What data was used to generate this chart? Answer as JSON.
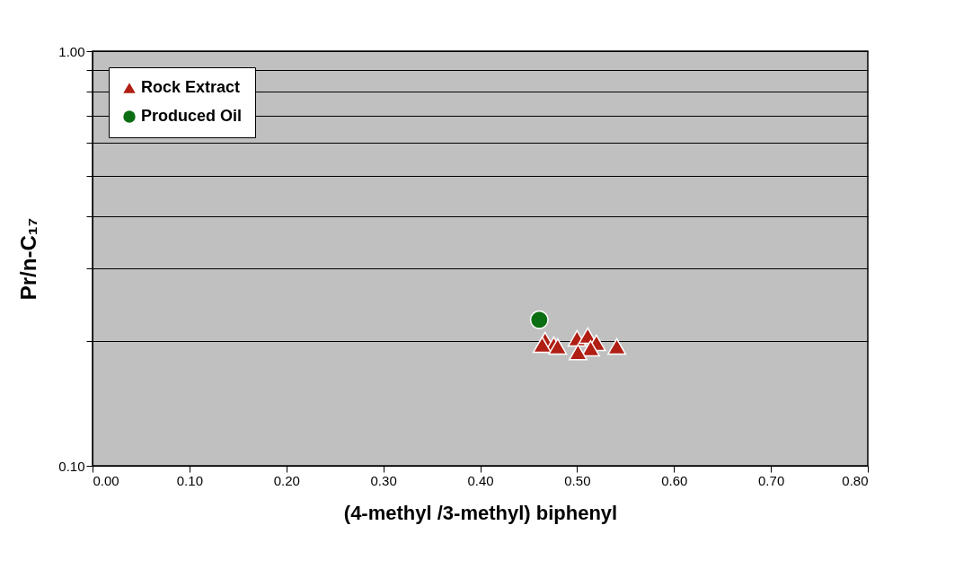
{
  "chart_data": {
    "type": "scatter",
    "xlabel": "(4-methyl /3-methyl) biphenyl",
    "ylabel": "Pr/n-C₁₇",
    "xlim": [
      0,
      0.8
    ],
    "ylim": [
      0.1,
      1.0
    ],
    "log": "y",
    "grid": "y",
    "legend": "top left",
    "xticks": [
      {
        "value": 0,
        "label": "0.00"
      },
      {
        "value": 0.1,
        "label": "0.10"
      },
      {
        "value": 0.2,
        "label": "0.20"
      },
      {
        "value": 0.3,
        "label": "0.30"
      },
      {
        "value": 0.4,
        "label": "0.40"
      },
      {
        "value": 0.5,
        "label": "0.50"
      },
      {
        "value": 0.6,
        "label": "0.60"
      },
      {
        "value": 0.7,
        "label": "0.70"
      },
      {
        "value": 0.8,
        "label": "0.80"
      }
    ],
    "yticks": [
      {
        "value": 0.1,
        "label": "0.10"
      },
      {
        "value": 0.2,
        "label": null
      },
      {
        "value": 0.3,
        "label": null
      },
      {
        "value": 0.4,
        "label": null
      },
      {
        "value": 0.5,
        "label": null
      },
      {
        "value": 0.6,
        "label": null
      },
      {
        "value": 0.7,
        "label": null
      },
      {
        "value": 0.8,
        "label": null
      },
      {
        "value": 0.9,
        "label": null
      },
      {
        "value": 1.0,
        "label": "1.00"
      }
    ],
    "series": [
      {
        "name": "Rock Extract",
        "color": "#b01e14",
        "marker": "triangle",
        "x": [
          0.467,
          0.476,
          0.464,
          0.5,
          0.511,
          0.52,
          0.514,
          0.501,
          0.541,
          0.48
        ],
        "values": [
          0.201,
          0.196,
          0.196,
          0.203,
          0.206,
          0.198,
          0.192,
          0.188,
          0.194,
          0.194
        ]
      },
      {
        "name": "Produced Oil",
        "color": "#0b6e12",
        "marker": "circle",
        "x": [
          0.461
        ],
        "values": [
          0.225
        ]
      }
    ]
  }
}
